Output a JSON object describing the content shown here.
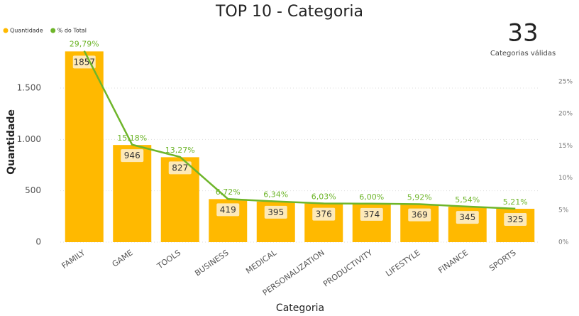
{
  "chart_data": {
    "type": "combo",
    "title": "TOP 10 - Categoria",
    "x_label": "Categoria",
    "y_label": "Quantidade",
    "categories": [
      "FAMILY",
      "GAME",
      "TOOLS",
      "BUSINESS",
      "MEDICAL",
      "PERSONALIZATION",
      "PRODUCTIVITY",
      "LIFESTYLE",
      "FINANCE",
      "SPORTS"
    ],
    "series": [
      {
        "name": "Quantidade",
        "color": "#ffb900",
        "kind": "bar",
        "values": [
          1857,
          946,
          827,
          419,
          395,
          376,
          374,
          369,
          345,
          325
        ]
      },
      {
        "name": "% do Total",
        "color": "#6eb52a",
        "kind": "line",
        "axis": "y2",
        "values": [
          29.79,
          15.18,
          13.27,
          6.72,
          6.34,
          6.03,
          6.0,
          5.92,
          5.54,
          5.21
        ],
        "value_labels": [
          "29,79%",
          "15,18%",
          "13,27%",
          "6,72%",
          "6,34%",
          "6,03%",
          "6,00%",
          "5,92%",
          "5,54%",
          "5,21%"
        ]
      }
    ],
    "ylim": [
      0,
      2000
    ],
    "yticks": [
      0,
      500,
      {
        "value": 1000,
        "label": "1.000"
      },
      {
        "value": 1500,
        "label": "1.500"
      }
    ],
    "y2lim": [
      0,
      32
    ],
    "y2ticks": [
      {
        "value": 0,
        "label": "0%"
      },
      {
        "value": 5,
        "label": "5%"
      },
      {
        "value": 10,
        "label": "10%"
      },
      {
        "value": 15,
        "label": "15%"
      },
      {
        "value": 20,
        "label": "20%"
      },
      {
        "value": 25,
        "label": "25%"
      }
    ],
    "grid": true,
    "legend": "top-left"
  },
  "card": {
    "value": 33,
    "label": "Categorias válidas"
  }
}
